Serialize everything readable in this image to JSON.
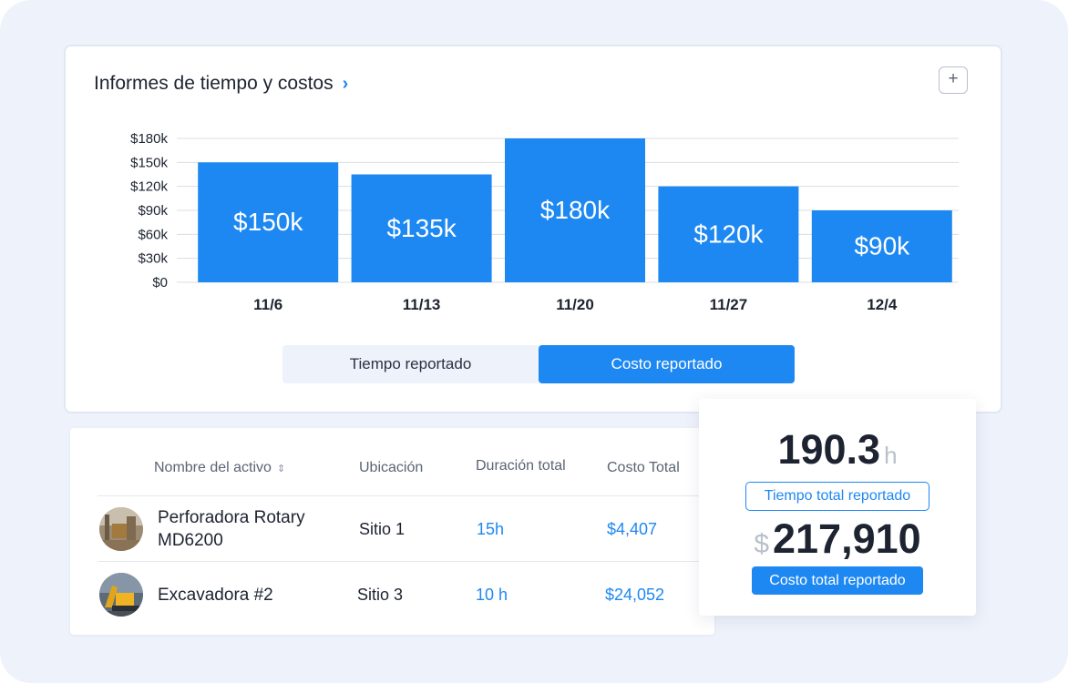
{
  "card": {
    "title": "Informes de tiempo y costos",
    "chevron_icon": "chevron-right-icon",
    "add_icon": "plus-icon",
    "add_label": "+"
  },
  "chart_data": {
    "type": "bar",
    "categories": [
      "11/6",
      "11/13",
      "11/20",
      "11/27",
      "12/4"
    ],
    "values": [
      150,
      135,
      180,
      120,
      90
    ],
    "value_labels": [
      "$150k",
      "$135k",
      "$180k",
      "$120k",
      "$90k"
    ],
    "y_ticks": [
      0,
      30,
      60,
      90,
      120,
      150,
      180
    ],
    "y_tick_labels": [
      "$0",
      "$30k",
      "$60k",
      "$90k",
      "$120k",
      "$150k",
      "$180k"
    ],
    "ylim": [
      0,
      180
    ],
    "bar_color": "#1e88f2",
    "grid": true
  },
  "toggle": {
    "options": [
      "Tiempo reportado",
      "Costo reportado"
    ],
    "selected": "Costo reportado"
  },
  "table": {
    "headers": {
      "name": "Nombre del activo",
      "location": "Ubicación",
      "duration": "Duración total",
      "cost": "Costo Total"
    },
    "sort_icon": "sort-icon",
    "rows": [
      {
        "name": "Perforadora Rotary MD6200",
        "location": "Sitio 1",
        "duration": "15h",
        "cost": "$4,407"
      },
      {
        "name": "Excavadora #2",
        "location": "Sitio 3",
        "duration": "10 h",
        "cost": "$24,052"
      }
    ]
  },
  "summary": {
    "hours_value": "190.3",
    "hours_unit": "h",
    "hours_label": "Tiempo total reportado",
    "cost_currency": "$",
    "cost_value": "217,910",
    "cost_label": "Costo total reportado"
  },
  "colors": {
    "accent": "#1e88f2",
    "background": "#eef2fb"
  }
}
